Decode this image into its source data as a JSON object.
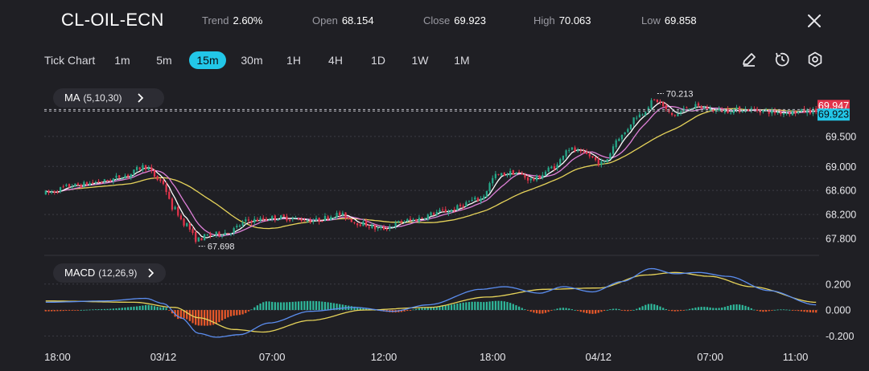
{
  "header": {
    "symbol": "CL-OIL-ECN",
    "trend_label": "Trend",
    "trend_value": "2.60%",
    "open_label": "Open",
    "open_value": "68.154",
    "close_label": "Close",
    "close_value": "69.923",
    "high_label": "High",
    "high_value": "70.063",
    "low_label": "Low",
    "low_value": "69.858"
  },
  "toolbar": {
    "tick_chart_label": "Tick Chart",
    "timeframes": [
      "1m",
      "5m",
      "15m",
      "30m",
      "1H",
      "4H",
      "1D",
      "1W",
      "1M"
    ],
    "active_timeframe": "15m",
    "icons": [
      "pencil-icon",
      "clock-icon",
      "settings-icon",
      "close-icon"
    ]
  },
  "indicators": {
    "ma_label": "MA",
    "ma_params": "(5,10,30)",
    "macd_label": "MACD",
    "macd_params": "(12,26,9)"
  },
  "colors": {
    "background": "#1f1f24",
    "up": "#26a98a",
    "down": "#e2344b",
    "ma5": "#ffffff",
    "ma10": "#e081d9",
    "ma30": "#e6d35a",
    "dif": "#5b8def",
    "dea": "#e6d35a",
    "hist_up": "#2fb79a",
    "hist_down": "#e8582a",
    "price_tag_high": "#e2344b",
    "price_tag_current": "#22c7e8"
  },
  "chart_data": {
    "type": "candlestick",
    "price_axis": {
      "ylim": [
        67.6,
        70.3
      ],
      "ticks": [
        "69.500",
        "69.000",
        "68.600",
        "68.200",
        "67.800"
      ]
    },
    "macd_axis": {
      "ylim": [
        -0.26,
        0.36
      ],
      "ticks": [
        "0.200",
        "0.000",
        "-0.200"
      ]
    },
    "x_ticks": [
      "18:00",
      "03/12",
      "07:00",
      "12:00",
      "18:00",
      "04/12",
      "07:00",
      "11:00"
    ],
    "x_tick_indices": [
      4,
      40,
      77,
      115,
      152,
      188,
      226,
      255
    ],
    "candle_count": 263,
    "annotations": {
      "high_label": "70.213",
      "low_label": "67.698"
    },
    "price_tags": {
      "high_line": "69.947",
      "current": "69.923"
    },
    "anchors": [
      [
        0,
        68.55
      ],
      [
        10,
        68.68
      ],
      [
        20,
        68.75
      ],
      [
        28,
        68.85
      ],
      [
        34,
        69.0
      ],
      [
        40,
        68.75
      ],
      [
        44,
        68.3
      ],
      [
        48,
        68.05
      ],
      [
        52,
        67.78
      ],
      [
        56,
        67.85
      ],
      [
        62,
        67.9
      ],
      [
        70,
        68.1
      ],
      [
        80,
        68.15
      ],
      [
        92,
        68.1
      ],
      [
        100,
        68.2
      ],
      [
        108,
        68.05
      ],
      [
        114,
        67.96
      ],
      [
        124,
        68.1
      ],
      [
        136,
        68.25
      ],
      [
        148,
        68.45
      ],
      [
        154,
        68.85
      ],
      [
        160,
        68.9
      ],
      [
        166,
        68.78
      ],
      [
        174,
        69.0
      ],
      [
        178,
        69.3
      ],
      [
        184,
        69.2
      ],
      [
        190,
        69.05
      ],
      [
        196,
        69.5
      ],
      [
        202,
        69.85
      ],
      [
        208,
        70.1
      ],
      [
        214,
        69.85
      ],
      [
        220,
        70.0
      ],
      [
        230,
        69.93
      ],
      [
        240,
        69.95
      ],
      [
        250,
        69.9
      ],
      [
        262,
        69.92
      ]
    ],
    "dif_anchors": [
      [
        0,
        0.06
      ],
      [
        20,
        0.07
      ],
      [
        34,
        0.09
      ],
      [
        40,
        0.05
      ],
      [
        46,
        -0.06
      ],
      [
        52,
        -0.18
      ],
      [
        58,
        -0.21
      ],
      [
        66,
        -0.19
      ],
      [
        76,
        -0.1
      ],
      [
        90,
        -0.01
      ],
      [
        105,
        0.02
      ],
      [
        118,
        -0.01
      ],
      [
        130,
        0.04
      ],
      [
        148,
        0.16
      ],
      [
        156,
        0.18
      ],
      [
        168,
        0.13
      ],
      [
        176,
        0.18
      ],
      [
        186,
        0.14
      ],
      [
        196,
        0.22
      ],
      [
        206,
        0.32
      ],
      [
        214,
        0.28
      ],
      [
        222,
        0.29
      ],
      [
        232,
        0.26
      ],
      [
        246,
        0.15
      ],
      [
        262,
        0.04
      ]
    ],
    "dea_anchors": [
      [
        0,
        0.07
      ],
      [
        30,
        0.06
      ],
      [
        44,
        0.02
      ],
      [
        52,
        -0.06
      ],
      [
        64,
        -0.15
      ],
      [
        74,
        -0.17
      ],
      [
        90,
        -0.08
      ],
      [
        108,
        0.0
      ],
      [
        130,
        0.02
      ],
      [
        150,
        0.1
      ],
      [
        170,
        0.16
      ],
      [
        188,
        0.17
      ],
      [
        204,
        0.27
      ],
      [
        214,
        0.29
      ],
      [
        226,
        0.26
      ],
      [
        240,
        0.18
      ],
      [
        262,
        0.06
      ]
    ]
  }
}
